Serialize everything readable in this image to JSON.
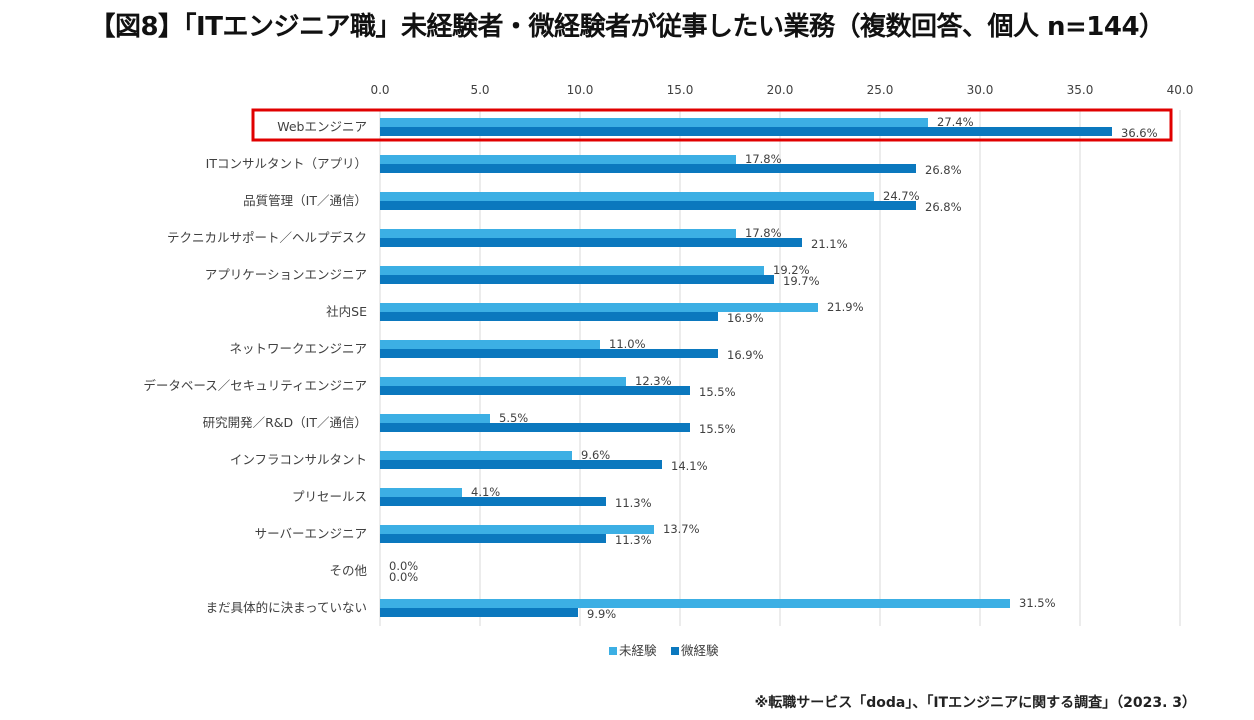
{
  "title": "【図8】「ITエンジニア職」未経験者・微経験者が従事したい業務（複数回答、個人 n=144）",
  "source_note": "※転職サービス「doda」、「ITエンジニアに関する調査」（2023. 3）",
  "colors": {
    "series_1": "#3CAFE4",
    "series_2": "#0B78BE",
    "highlight": "#E00000",
    "grid": "#D9D9D9",
    "text": "#404040"
  },
  "chart_data": {
    "type": "bar",
    "orientation": "horizontal",
    "categories": [
      "Webエンジニア",
      "ITコンサルタント（アプリ）",
      "品質管理（IT／通信）",
      "テクニカルサポート／ヘルプデスク",
      "アプリケーションエンジニア",
      "社内SE",
      "ネットワークエンジニア",
      "データベース／セキュリティエンジニア",
      "研究開発／R&D（IT／通信）",
      "インフラコンサルタント",
      "プリセールス",
      "サーバーエンジニア",
      "その他",
      "まだ具体的に決まっていない"
    ],
    "series": [
      {
        "name": "未経験",
        "values": [
          27.4,
          17.8,
          24.7,
          17.8,
          19.2,
          21.9,
          11.0,
          12.3,
          5.5,
          9.6,
          4.1,
          13.7,
          0.0,
          31.5
        ]
      },
      {
        "name": "微経験",
        "values": [
          36.6,
          26.8,
          26.8,
          21.1,
          19.7,
          16.9,
          16.9,
          15.5,
          15.5,
          14.1,
          11.3,
          11.3,
          0.0,
          9.9
        ]
      }
    ],
    "xlim": [
      0,
      40
    ],
    "xticks": [
      "0.0",
      "5.0",
      "10.0",
      "15.0",
      "20.0",
      "25.0",
      "30.0",
      "35.0",
      "40.0"
    ],
    "tick_step": 5,
    "axis_position": "top",
    "grid": true,
    "legend_position": "bottom",
    "value_label_suffix": "%",
    "highlighted_category": "Webエンジニア"
  }
}
